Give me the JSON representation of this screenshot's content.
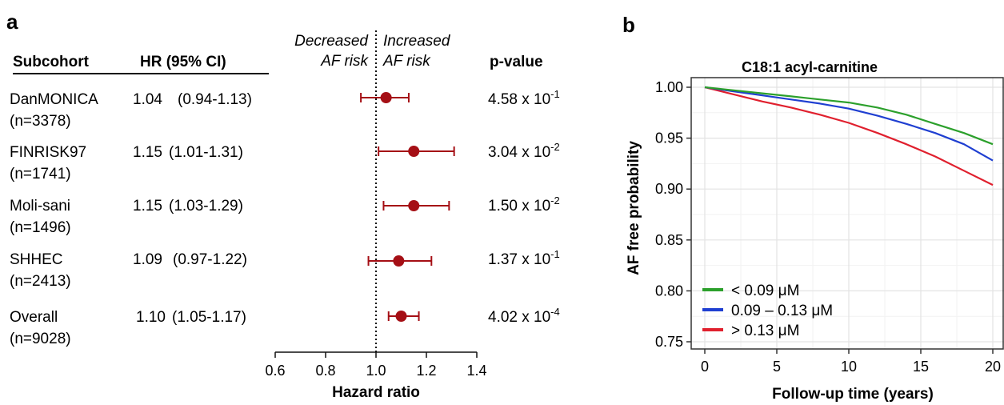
{
  "chart_data": [
    {
      "type": "forest",
      "panel": "a",
      "headers": {
        "subcohort": "Subcohort",
        "hr": "HR (95% CI)",
        "pvalue": "p-value",
        "decreased_1": "Decreased",
        "decreased_2": "AF risk",
        "increased_1": "Increased",
        "increased_2": "AF risk"
      },
      "rows": [
        {
          "name": "DanMONICA",
          "n": "(n=3378)",
          "hr_text": "1.04",
          "ci_text": "(0.94-1.13)",
          "hr": 1.04,
          "lo": 0.94,
          "hi": 1.13,
          "p_mant": "4.58 x 10",
          "p_exp": "-1"
        },
        {
          "name": "FINRISK97",
          "n": "(n=1741)",
          "hr_text": "1.15",
          "ci_text": "(1.01-1.31)",
          "hr": 1.15,
          "lo": 1.01,
          "hi": 1.31,
          "p_mant": "3.04 x 10",
          "p_exp": "-2"
        },
        {
          "name": "Moli-sani",
          "n": "(n=1496)",
          "hr_text": "1.15",
          "ci_text": "(1.03-1.29)",
          "hr": 1.15,
          "lo": 1.03,
          "hi": 1.29,
          "p_mant": "1.50 x 10",
          "p_exp": "-2"
        },
        {
          "name": "SHHEC",
          "n": "(n=2413)",
          "hr_text": "1.09",
          "ci_text": "(0.97-1.22)",
          "hr": 1.09,
          "lo": 0.97,
          "hi": 1.22,
          "p_mant": "1.37 x 10",
          "p_exp": "-1"
        },
        {
          "name": "Overall",
          "n": "(n=9028)",
          "hr_text": "1.10",
          "ci_text": "(1.05-1.17)",
          "hr": 1.1,
          "lo": 1.05,
          "hi": 1.17,
          "p_mant": "4.02 x 10",
          "p_exp": "-4"
        }
      ],
      "xlabel": "Hazard ratio",
      "xlim": [
        0.6,
        1.4
      ],
      "xticks": [
        "0.6",
        "0.8",
        "1.0",
        "1.2",
        "1.4"
      ],
      "reference_line": 1.0,
      "point_color": "#a50f15"
    },
    {
      "type": "line",
      "panel": "b",
      "title": "C18:1 acyl-carnitine",
      "xlabel": "Follow-up time (years)",
      "ylabel": "AF free probability",
      "xlim": [
        0,
        20
      ],
      "ylim": [
        0.75,
        1.0
      ],
      "xticks": [
        "0",
        "5",
        "10",
        "15",
        "20"
      ],
      "yticks": [
        "0.75",
        "0.80",
        "0.85",
        "0.90",
        "0.95",
        "1.00"
      ],
      "grid": true,
      "legend_position": "bottom-left",
      "series": [
        {
          "name": "< 0.09 μM",
          "color": "#2ca02c",
          "x": [
            0,
            2,
            4,
            6,
            8,
            10,
            12,
            14,
            16,
            18,
            20
          ],
          "y": [
            1.0,
            0.997,
            0.994,
            0.991,
            0.988,
            0.985,
            0.98,
            0.973,
            0.964,
            0.955,
            0.944
          ]
        },
        {
          "name": "0.09 – 0.13 μM",
          "color": "#1f3fd1",
          "x": [
            0,
            2,
            4,
            6,
            8,
            10,
            12,
            14,
            16,
            18,
            20
          ],
          "y": [
            1.0,
            0.996,
            0.992,
            0.988,
            0.984,
            0.979,
            0.972,
            0.964,
            0.955,
            0.944,
            0.928
          ]
        },
        {
          "name": "> 0.13 μM",
          "color": "#e0202e",
          "x": [
            0,
            2,
            4,
            6,
            8,
            10,
            12,
            14,
            16,
            18,
            20
          ],
          "y": [
            1.0,
            0.993,
            0.986,
            0.98,
            0.973,
            0.965,
            0.955,
            0.944,
            0.932,
            0.918,
            0.904
          ]
        }
      ]
    }
  ]
}
